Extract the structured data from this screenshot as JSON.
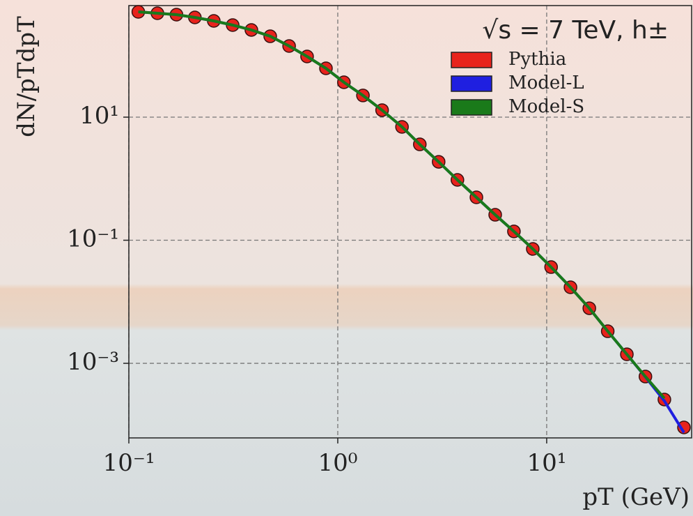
{
  "chart_data": {
    "type": "scatter-line",
    "legend_title": "√s = 7 TeV, h±",
    "x_label": "pT (GeV)",
    "y_label": "dN/pTdpT",
    "x": [
      0.111,
      0.137,
      0.169,
      0.207,
      0.255,
      0.314,
      0.386,
      0.475,
      0.585,
      0.713,
      0.878,
      1.07,
      1.32,
      1.63,
      2.03,
      2.47,
      3.04,
      3.74,
      4.61,
      5.67,
      6.97,
      8.58,
      10.5,
      13.0,
      16.0,
      19.6,
      24.2,
      29.7,
      36.6,
      45.4
    ],
    "series": [
      {
        "name": "Pythia",
        "color": "#e8231c",
        "style": "markers",
        "values": [
          514,
          488,
          463,
          417,
          366,
          313,
          261,
          206,
          143,
          96.8,
          62.1,
          36.9,
          22.5,
          13.0,
          6.94,
          3.61,
          1.88,
          0.955,
          0.498,
          0.259,
          0.139,
          0.0722,
          0.0366,
          0.0172,
          0.00785,
          0.00332,
          0.0014,
          0.000609,
          0.000258,
          9.08e-05
        ]
      },
      {
        "name": "Model-L",
        "color": "#1f1fe0",
        "style": "line",
        "values": [
          514,
          488,
          463,
          417,
          366,
          313,
          261,
          206,
          143,
          96.8,
          62.1,
          36.9,
          22.5,
          13.0,
          6.94,
          3.61,
          1.88,
          0.955,
          0.498,
          0.259,
          0.139,
          0.0722,
          0.0366,
          0.0172,
          0.00785,
          0.00332,
          0.0014,
          0.0006,
          0.000245,
          7.5e-05
        ]
      },
      {
        "name": "Model-S",
        "color": "#1a7a1a",
        "style": "line",
        "values": [
          514,
          488,
          463,
          417,
          366,
          313,
          261,
          206,
          143,
          96.8,
          62.1,
          36.9,
          22.5,
          13.0,
          6.94,
          3.61,
          1.88,
          0.955,
          0.498,
          0.259,
          0.139,
          0.0722,
          0.0366,
          0.0172,
          0.00785,
          0.00332,
          0.0014,
          0.000609,
          0.00027,
          null
        ]
      }
    ],
    "xscale": "log",
    "yscale": "log",
    "xlim": [
      0.1,
      49.4
    ],
    "ylim": [
      6.14e-05,
      650
    ],
    "xticks": [
      {
        "value": 0.1,
        "label": "10⁻¹"
      },
      {
        "value": 1,
        "label": "10⁰"
      },
      {
        "value": 10,
        "label": "10¹"
      }
    ],
    "yticks": [
      {
        "value": 0.001,
        "label": "10⁻³"
      },
      {
        "value": 0.1,
        "label": "10⁻¹"
      },
      {
        "value": 10,
        "label": "10¹"
      }
    ],
    "grid": true,
    "legend": "upper right"
  }
}
